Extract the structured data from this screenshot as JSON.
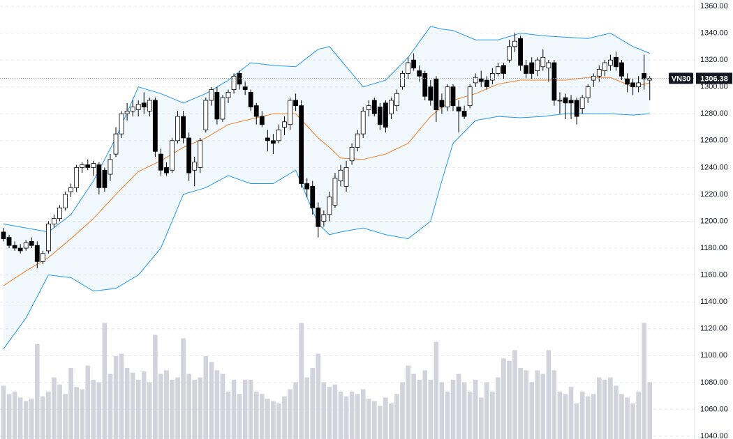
{
  "chart_data": {
    "type": "candlestick",
    "symbol": "VN30",
    "ylim": [
      1040,
      1360
    ],
    "yticks": [
      {
        "value": 1040,
        "label": "1040.00"
      },
      {
        "value": 1060,
        "label": "1060.00"
      },
      {
        "value": 1080,
        "label": "1080.00"
      },
      {
        "value": 1100,
        "label": "1100.00"
      },
      {
        "value": 1120,
        "label": "1120.00"
      },
      {
        "value": 1140,
        "label": "1140.00"
      },
      {
        "value": 1160,
        "label": "1160.00"
      },
      {
        "value": 1180,
        "label": "1180.00"
      },
      {
        "value": 1200,
        "label": "1200.00"
      },
      {
        "value": 1220,
        "label": "1220.00"
      },
      {
        "value": 1240,
        "label": "1240.00"
      },
      {
        "value": 1260,
        "label": "1260.00"
      },
      {
        "value": 1280,
        "label": "1280.00"
      },
      {
        "value": 1300,
        "label": "1300.00"
      },
      {
        "value": 1320,
        "label": "1320.00"
      },
      {
        "value": 1340,
        "label": "1340.00"
      },
      {
        "value": 1360,
        "label": "1360.00"
      }
    ],
    "grid": true,
    "up_color": "#ffffff",
    "down_color": "#000000",
    "volume_color": "#d1d4dc",
    "band_color": "#2196f3",
    "middle_color": "#f57c20",
    "ohlc": [
      [
        1192,
        1195,
        1185,
        1187
      ],
      [
        1188,
        1190,
        1180,
        1182
      ],
      [
        1182,
        1185,
        1178,
        1180
      ],
      [
        1180,
        1183,
        1176,
        1178
      ],
      [
        1180,
        1186,
        1178,
        1184
      ],
      [
        1185,
        1188,
        1180,
        1182
      ],
      [
        1182,
        1185,
        1165,
        1170
      ],
      [
        1170,
        1178,
        1168,
        1176
      ],
      [
        1178,
        1200,
        1176,
        1198
      ],
      [
        1198,
        1205,
        1195,
        1202
      ],
      [
        1202,
        1212,
        1200,
        1210
      ],
      [
        1210,
        1222,
        1208,
        1220
      ],
      [
        1222,
        1228,
        1218,
        1225
      ],
      [
        1225,
        1242,
        1222,
        1240
      ],
      [
        1240,
        1244,
        1236,
        1242
      ],
      [
        1242,
        1246,
        1238,
        1240
      ],
      [
        1240,
        1245,
        1234,
        1243
      ],
      [
        1242,
        1244,
        1220,
        1225
      ],
      [
        1238,
        1240,
        1222,
        1225
      ],
      [
        1235,
        1250,
        1230,
        1246
      ],
      [
        1250,
        1270,
        1248,
        1265
      ],
      [
        1265,
        1282,
        1262,
        1280
      ],
      [
        1280,
        1288,
        1275,
        1282
      ],
      [
        1282,
        1290,
        1278,
        1285
      ],
      [
        1283,
        1290,
        1278,
        1287
      ],
      [
        1288,
        1296,
        1280,
        1285
      ],
      [
        1282,
        1292,
        1278,
        1290
      ],
      [
        1290,
        1292,
        1248,
        1252
      ],
      [
        1250,
        1254,
        1234,
        1238
      ],
      [
        1240,
        1244,
        1234,
        1236
      ],
      [
        1238,
        1262,
        1236,
        1260
      ],
      [
        1260,
        1282,
        1258,
        1278
      ],
      [
        1278,
        1282,
        1258,
        1262
      ],
      [
        1262,
        1266,
        1230,
        1236
      ],
      [
        1238,
        1248,
        1226,
        1244
      ],
      [
        1240,
        1262,
        1236,
        1260
      ],
      [
        1268,
        1292,
        1266,
        1290
      ],
      [
        1290,
        1300,
        1286,
        1298
      ],
      [
        1296,
        1300,
        1272,
        1276
      ],
      [
        1276,
        1294,
        1274,
        1292
      ],
      [
        1292,
        1298,
        1288,
        1296
      ],
      [
        1298,
        1310,
        1295,
        1308
      ],
      [
        1310,
        1312,
        1298,
        1302
      ],
      [
        1300,
        1304,
        1294,
        1298
      ],
      [
        1296,
        1298,
        1282,
        1285
      ],
      [
        1286,
        1288,
        1272,
        1278
      ],
      [
        1278,
        1282,
        1270,
        1272
      ],
      [
        1262,
        1268,
        1252,
        1260
      ],
      [
        1260,
        1265,
        1250,
        1258
      ],
      [
        1260,
        1272,
        1258,
        1268
      ],
      [
        1270,
        1278,
        1264,
        1274
      ],
      [
        1272,
        1292,
        1268,
        1290
      ],
      [
        1290,
        1295,
        1282,
        1286
      ],
      [
        1286,
        1290,
        1225,
        1228
      ],
      [
        1228,
        1232,
        1218,
        1224
      ],
      [
        1226,
        1230,
        1205,
        1210
      ],
      [
        1210,
        1214,
        1188,
        1196
      ],
      [
        1200,
        1208,
        1196,
        1205
      ],
      [
        1205,
        1222,
        1200,
        1218
      ],
      [
        1212,
        1236,
        1210,
        1232
      ],
      [
        1230,
        1242,
        1226,
        1238
      ],
      [
        1226,
        1245,
        1222,
        1240
      ],
      [
        1245,
        1258,
        1242,
        1255
      ],
      [
        1255,
        1268,
        1252,
        1265
      ],
      [
        1265,
        1285,
        1262,
        1282
      ],
      [
        1283,
        1290,
        1278,
        1286
      ],
      [
        1290,
        1292,
        1278,
        1280
      ],
      [
        1285,
        1288,
        1268,
        1272
      ],
      [
        1288,
        1290,
        1266,
        1270
      ],
      [
        1280,
        1292,
        1276,
        1290
      ],
      [
        1286,
        1298,
        1282,
        1295
      ],
      [
        1300,
        1312,
        1298,
        1310
      ],
      [
        1310,
        1322,
        1306,
        1318
      ],
      [
        1320,
        1325,
        1312,
        1314
      ],
      [
        1312,
        1316,
        1304,
        1308
      ],
      [
        1310,
        1312,
        1290,
        1293
      ],
      [
        1300,
        1305,
        1286,
        1290
      ],
      [
        1306,
        1308,
        1274,
        1283
      ],
      [
        1290,
        1295,
        1280,
        1285
      ],
      [
        1285,
        1302,
        1282,
        1300
      ],
      [
        1300,
        1302,
        1282,
        1286
      ],
      [
        1285,
        1290,
        1266,
        1282
      ],
      [
        1282,
        1286,
        1276,
        1278
      ],
      [
        1286,
        1302,
        1284,
        1300
      ],
      [
        1303,
        1310,
        1300,
        1307
      ],
      [
        1306,
        1312,
        1300,
        1304
      ],
      [
        1305,
        1308,
        1298,
        1300
      ],
      [
        1305,
        1314,
        1302,
        1310
      ],
      [
        1310,
        1318,
        1308,
        1315
      ],
      [
        1316,
        1318,
        1306,
        1310
      ],
      [
        1320,
        1335,
        1318,
        1330
      ],
      [
        1330,
        1340,
        1326,
        1334
      ],
      [
        1336,
        1338,
        1312,
        1316
      ],
      [
        1316,
        1320,
        1306,
        1310
      ],
      [
        1318,
        1322,
        1306,
        1310
      ],
      [
        1312,
        1322,
        1308,
        1320
      ],
      [
        1315,
        1328,
        1312,
        1322
      ],
      [
        1314,
        1320,
        1304,
        1318
      ],
      [
        1318,
        1320,
        1286,
        1290
      ],
      [
        1290,
        1296,
        1280,
        1290
      ],
      [
        1292,
        1295,
        1276,
        1288
      ],
      [
        1290,
        1294,
        1276,
        1288
      ],
      [
        1290,
        1292,
        1272,
        1278
      ],
      [
        1284,
        1294,
        1280,
        1292
      ],
      [
        1292,
        1302,
        1288,
        1300
      ],
      [
        1305,
        1310,
        1300,
        1308
      ],
      [
        1308,
        1316,
        1304,
        1313
      ],
      [
        1312,
        1320,
        1308,
        1318
      ],
      [
        1316,
        1324,
        1312,
        1320
      ],
      [
        1322,
        1326,
        1312,
        1315
      ],
      [
        1318,
        1320,
        1305,
        1308
      ],
      [
        1306,
        1310,
        1296,
        1302
      ],
      [
        1303,
        1306,
        1294,
        1300
      ],
      [
        1300,
        1308,
        1296,
        1303
      ],
      [
        1310,
        1324,
        1298,
        1306
      ],
      [
        1305,
        1308,
        1290,
        1306.38
      ]
    ],
    "volume_lim": [
      0,
      100
    ],
    "volume": [
      45,
      38,
      40,
      35,
      32,
      34,
      80,
      36,
      40,
      52,
      46,
      38,
      60,
      44,
      42,
      62,
      50,
      48,
      98,
      55,
      70,
      72,
      60,
      56,
      50,
      57,
      48,
      88,
      55,
      58,
      50,
      52,
      85,
      55,
      50,
      52,
      70,
      65,
      58,
      55,
      40,
      50,
      38,
      50,
      50,
      40,
      38,
      34,
      32,
      30,
      36,
      42,
      48,
      98,
      52,
      60,
      72,
      48,
      44,
      46,
      40,
      36,
      40,
      38,
      42,
      34,
      32,
      28,
      35,
      30,
      38,
      48,
      62,
      55,
      50,
      58,
      50,
      82,
      48,
      40,
      50,
      55,
      48,
      40,
      50,
      35,
      48,
      40,
      52,
      68,
      66,
      75,
      60,
      58,
      48,
      58,
      55,
      75,
      58,
      40,
      38,
      44,
      30,
      40,
      36,
      38,
      52,
      50,
      52,
      45,
      38,
      35,
      30,
      40,
      98,
      48
    ],
    "band_x": [
      0,
      4,
      8,
      12,
      16,
      20,
      24,
      28,
      32,
      36,
      40,
      44,
      48,
      52,
      56,
      58,
      60,
      64,
      68,
      72,
      76,
      78,
      80,
      84,
      88,
      92,
      96,
      100,
      104,
      108,
      112,
      115
    ],
    "upper_band": [
      1198,
      1195,
      1192,
      1205,
      1230,
      1262,
      1300,
      1295,
      1288,
      1295,
      1305,
      1318,
      1316,
      1315,
      1328,
      1330,
      1320,
      1300,
      1305,
      1322,
      1345,
      1343,
      1342,
      1335,
      1335,
      1340,
      1338,
      1337,
      1336,
      1340,
      1330,
      1325
    ],
    "middle_band": [
      1152,
      1163,
      1173,
      1187,
      1202,
      1220,
      1237,
      1245,
      1255,
      1262,
      1272,
      1276,
      1280,
      1280,
      1262,
      1255,
      1247,
      1246,
      1250,
      1258,
      1278,
      1285,
      1290,
      1295,
      1302,
      1305,
      1305,
      1305,
      1307,
      1307,
      1300,
      1303
    ],
    "lower_band": [
      1105,
      1128,
      1160,
      1158,
      1148,
      1150,
      1160,
      1180,
      1220,
      1225,
      1234,
      1228,
      1228,
      1238,
      1198,
      1190,
      1192,
      1195,
      1190,
      1187,
      1200,
      1230,
      1258,
      1275,
      1278,
      1277,
      1278,
      1280,
      1280,
      1280,
      1279,
      1280
    ]
  }
}
